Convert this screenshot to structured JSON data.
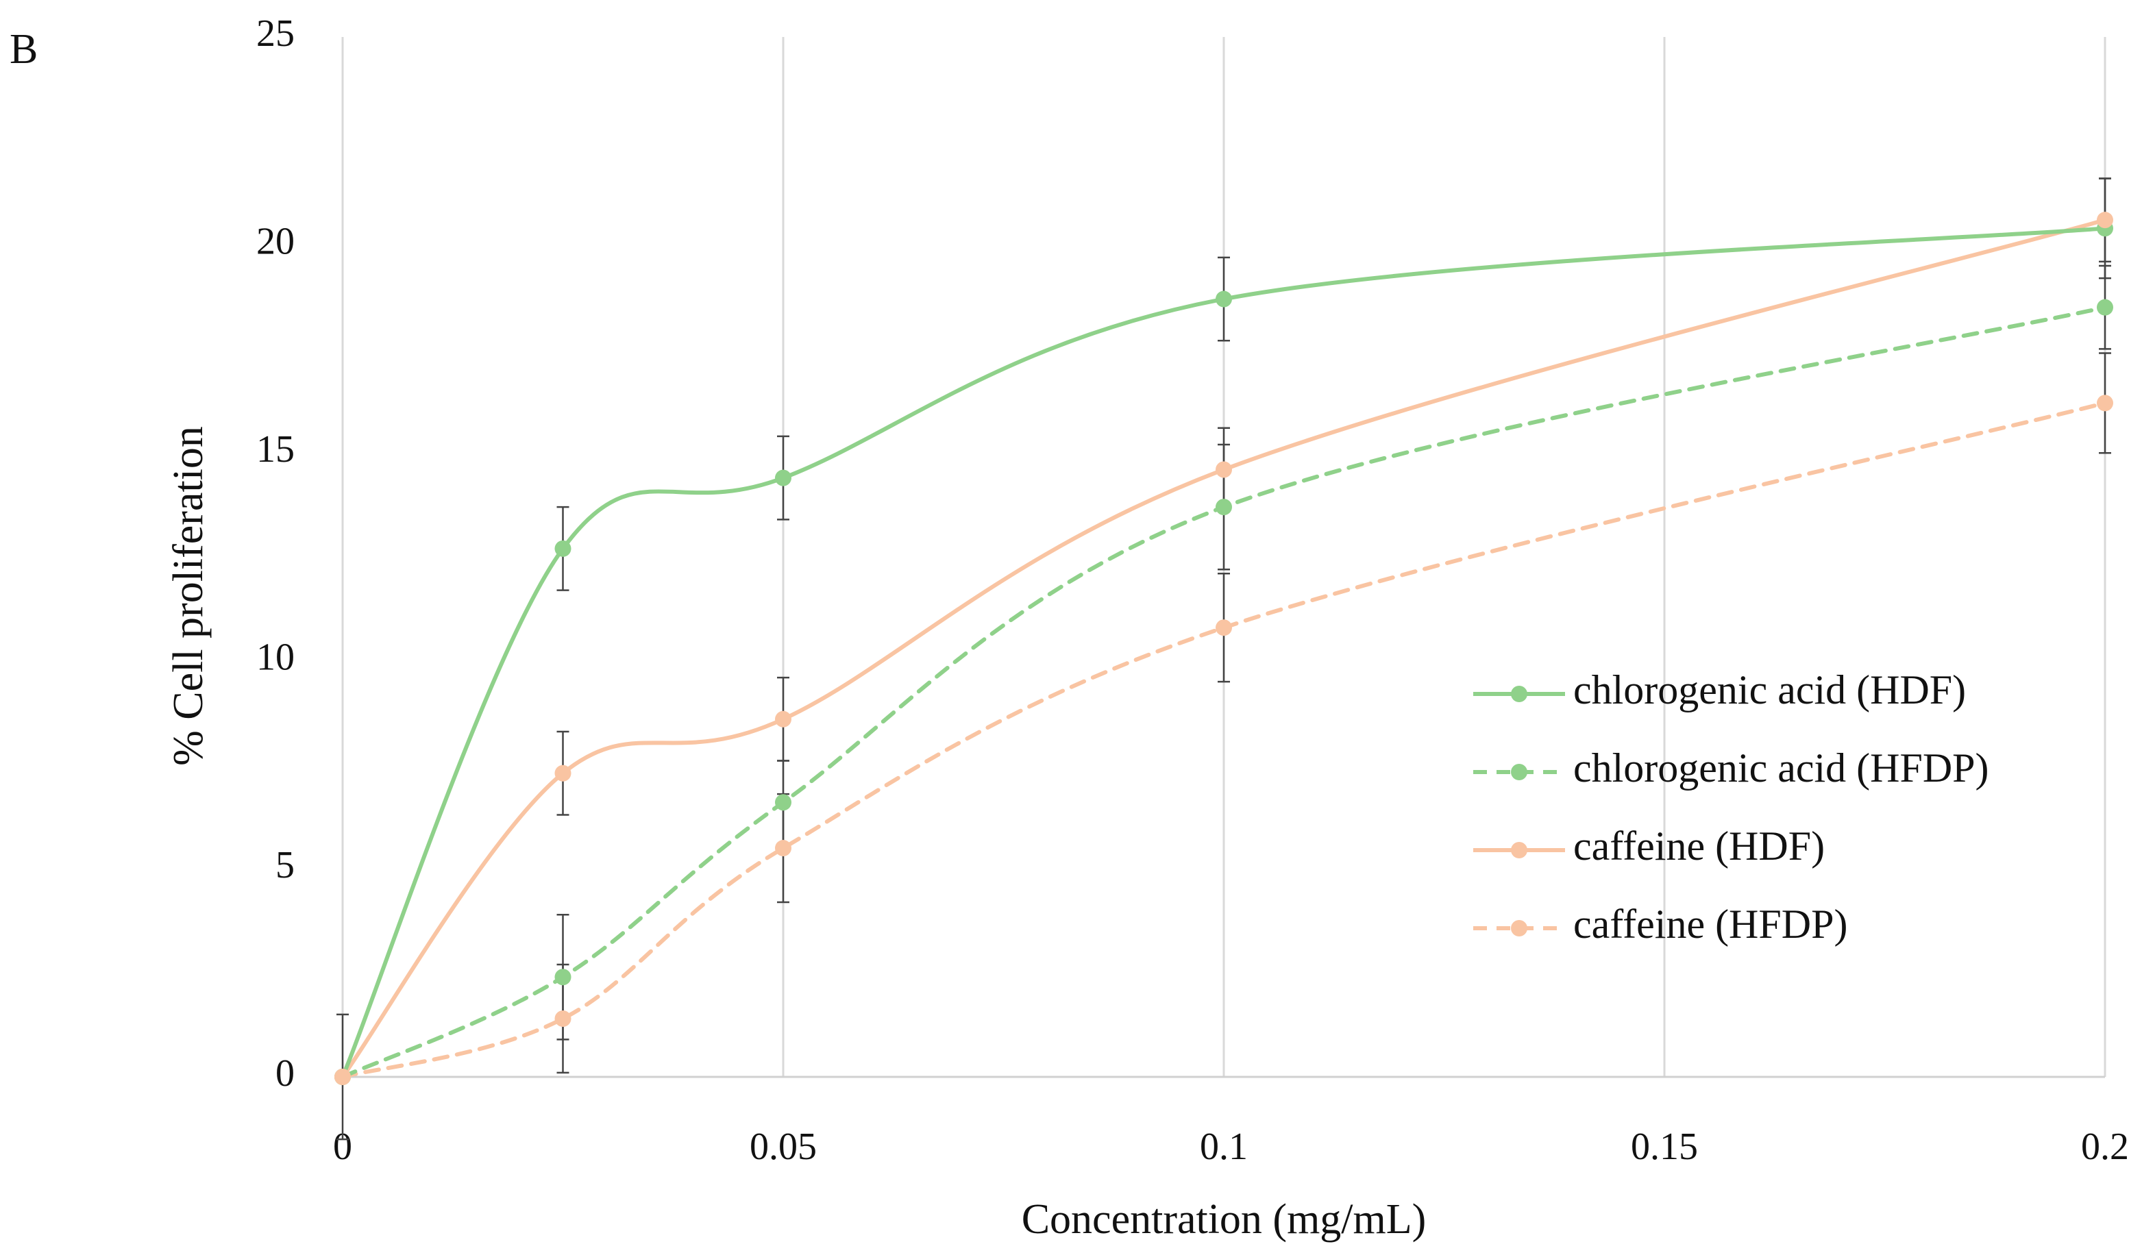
{
  "panel_label": "B",
  "chart_data": {
    "type": "line",
    "title": "",
    "xlabel": "Concentration (mg/mL)",
    "ylabel": "% Cell proliferation",
    "xlim": [
      0,
      0.2
    ],
    "ylim": [
      0,
      25
    ],
    "x_ticks": [
      0,
      0.05,
      0.1,
      0.15,
      0.2
    ],
    "x_tick_labels": [
      "0",
      "0.05",
      "0.1",
      "0.15",
      "0.2"
    ],
    "y_ticks": [
      0,
      5,
      10,
      15,
      20,
      25
    ],
    "y_tick_labels": [
      "0",
      "5",
      "10",
      "15",
      "20",
      "25"
    ],
    "grid": "vertical",
    "legend_position": "right",
    "x": [
      0,
      0.025,
      0.05,
      0.1,
      0.2
    ],
    "series": [
      {
        "name": "chlorogenic acid (HDF)",
        "color": "#8fd18a",
        "dash": "solid",
        "values": [
          0,
          12.7,
          14.4,
          18.7,
          20.4
        ],
        "errors": [
          1.5,
          1.0,
          1.0,
          1.0,
          1.2
        ]
      },
      {
        "name": "chlorogenic acid (HFDP)",
        "color": "#8fd18a",
        "dash": "dashed",
        "values": [
          0,
          2.4,
          6.6,
          13.7,
          18.5
        ],
        "errors": [
          0,
          1.5,
          1.0,
          1.5,
          1.0
        ]
      },
      {
        "name": "caffeine (HDF)",
        "color": "#f9c4a2",
        "dash": "solid",
        "values": [
          0,
          7.3,
          8.6,
          14.6,
          20.6
        ],
        "errors": [
          0,
          1.0,
          1.0,
          1.0,
          1.0
        ]
      },
      {
        "name": "caffeine (HFDP)",
        "color": "#f9c4a2",
        "dash": "dashed",
        "values": [
          0,
          1.4,
          5.5,
          10.8,
          16.2
        ],
        "errors": [
          0,
          1.3,
          1.3,
          1.3,
          1.2
        ]
      }
    ]
  }
}
